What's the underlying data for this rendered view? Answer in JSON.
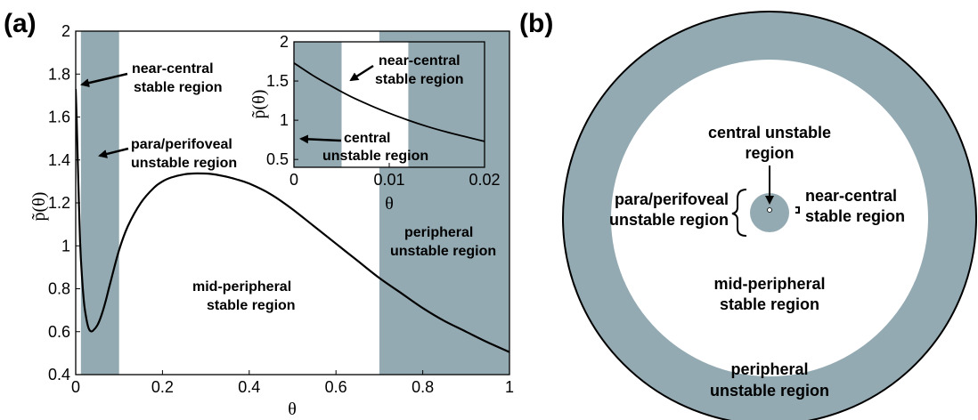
{
  "panel_labels": {
    "a": "(a)",
    "b": "(b)"
  },
  "chart_data": [
    {
      "type": "line",
      "panel": "(a)",
      "xlabel": "θ",
      "ylabel": "p̃(θ)",
      "xlim": [
        0,
        1
      ],
      "ylim": [
        0.4,
        2
      ],
      "xticks": [
        "0",
        "0.2",
        "0.4",
        "0.6",
        "0.8",
        "1"
      ],
      "yticks": [
        "0.4",
        "0.6",
        "0.8",
        "1",
        "1.2",
        "1.4",
        "1.6",
        "1.8",
        "2"
      ],
      "shaded_regions": [
        {
          "x0": 0.012,
          "x1": 0.1,
          "color": "#94aab2"
        },
        {
          "x0": 0.7,
          "x1": 1.0,
          "color": "#94aab2"
        }
      ],
      "series": [
        {
          "x": [
            0.0,
            0.002,
            0.005,
            0.01,
            0.015,
            0.02,
            0.025,
            0.03,
            0.035,
            0.04,
            0.05,
            0.06,
            0.07,
            0.08,
            0.1,
            0.12,
            0.15,
            0.18,
            0.2,
            0.22,
            0.25,
            0.28,
            0.31,
            0.34,
            0.37,
            0.4,
            0.45,
            0.5,
            0.55,
            0.6,
            0.65,
            0.7,
            0.75,
            0.8,
            0.85,
            0.9,
            0.95,
            1.0
          ],
          "y": [
            1.73,
            1.6,
            1.38,
            1.02,
            0.84,
            0.72,
            0.655,
            0.615,
            0.602,
            0.605,
            0.63,
            0.68,
            0.75,
            0.83,
            0.98,
            1.09,
            1.2,
            1.27,
            1.3,
            1.318,
            1.333,
            1.337,
            1.335,
            1.325,
            1.31,
            1.29,
            1.24,
            1.17,
            1.09,
            1.01,
            0.93,
            0.85,
            0.78,
            0.71,
            0.65,
            0.6,
            0.55,
            0.505
          ]
        }
      ],
      "annotations": {
        "near_central_1": "near-central",
        "near_central_2": "stable region",
        "para_1": "para/perifoveal",
        "para_2": "unstable region",
        "mid_1": "mid-peripheral",
        "mid_2": "stable region",
        "periph_1": "peripheral",
        "periph_2": "unstable region"
      }
    },
    {
      "type": "line",
      "panel": "(a) inset",
      "xlabel": "θ",
      "ylabel": "p̃(θ)",
      "xlim": [
        0,
        0.02
      ],
      "ylim": [
        0.4,
        2
      ],
      "xticks": [
        "0",
        "0.01",
        "0.02"
      ],
      "yticks": [
        "0.5",
        "1",
        "1.5",
        "2"
      ],
      "shaded_regions": [
        {
          "x0": 0.0,
          "x1": 0.005,
          "color": "#94aab2"
        },
        {
          "x0": 0.012,
          "x1": 0.02,
          "color": "#94aab2"
        }
      ],
      "series": [
        {
          "x": [
            0.0,
            0.002,
            0.004,
            0.006,
            0.008,
            0.01,
            0.012,
            0.014,
            0.016,
            0.018,
            0.02
          ],
          "y": [
            1.73,
            1.57,
            1.43,
            1.3,
            1.19,
            1.09,
            1.0,
            0.92,
            0.85,
            0.79,
            0.73
          ]
        }
      ],
      "annotations": {
        "near_central_1": "near-central",
        "near_central_2": "stable region",
        "central_1": "central",
        "central_2": "unstable region"
      }
    }
  ],
  "diagram_b": {
    "colors": {
      "shade": "#94aab2",
      "ring_outline": "#000000"
    },
    "labels": {
      "central_1": "central unstable",
      "central_2": "region",
      "para_1": "para/perifoveal",
      "para_2": "unstable region",
      "near_1": "near-central",
      "near_2": "stable region",
      "mid_1": "mid-peripheral",
      "mid_2": "stable region",
      "periph_1": "peripheral",
      "periph_2": "unstable region"
    }
  }
}
